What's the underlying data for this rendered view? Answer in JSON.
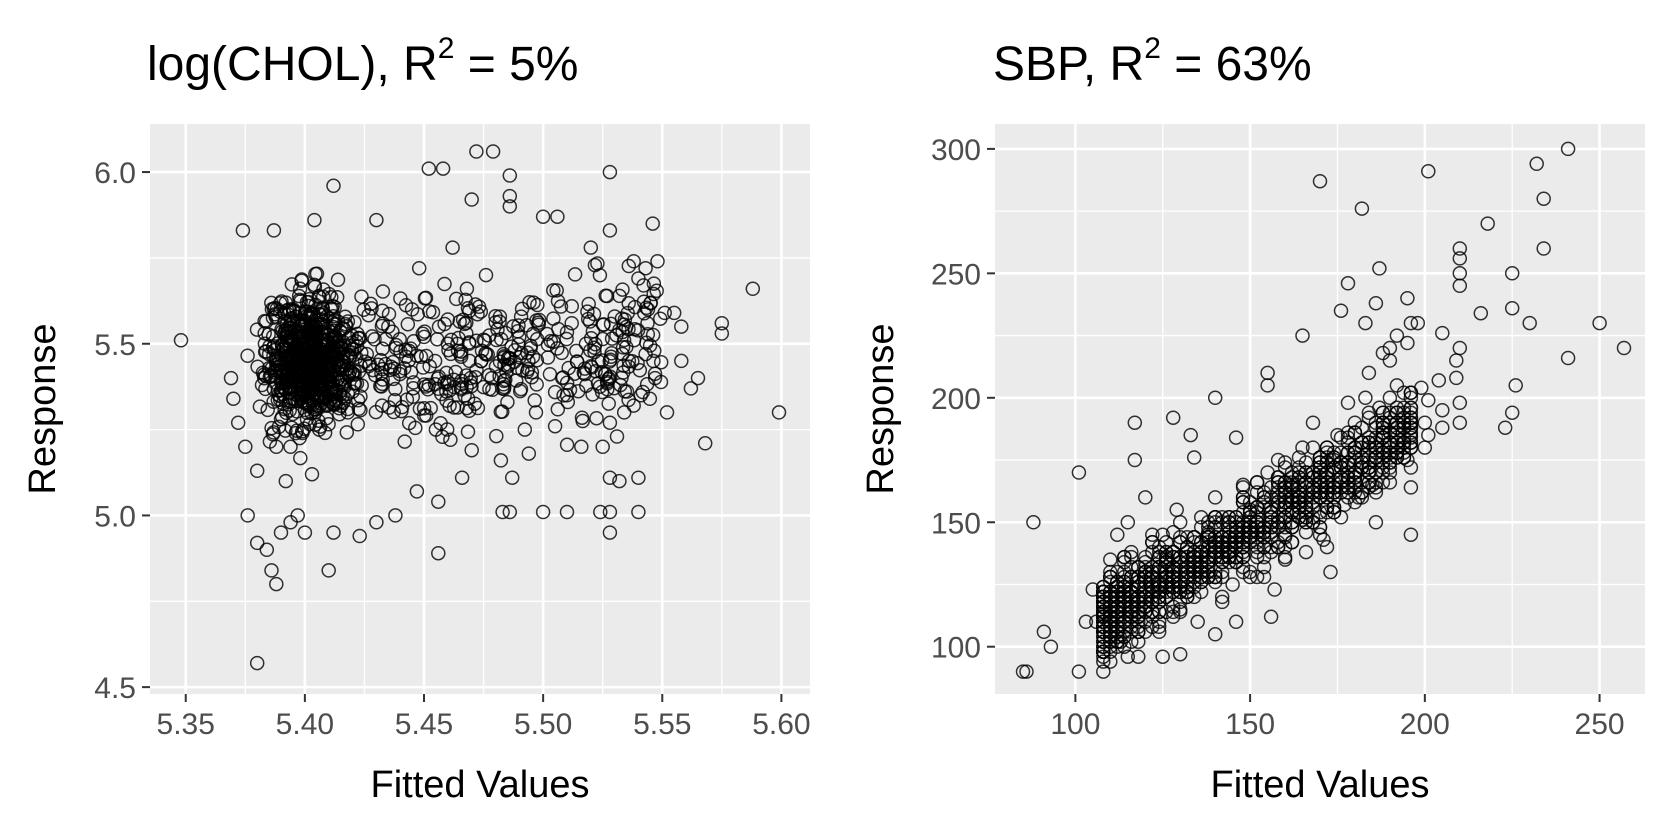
{
  "chart_data": [
    {
      "type": "scatter",
      "title": "log(CHOL), R",
      "title_superscript": "2",
      "title_suffix": " = 5%",
      "xlabel": "Fitted Values",
      "ylabel": "Response",
      "xlim": [
        5.335,
        5.612
      ],
      "ylim": [
        4.48,
        6.14
      ],
      "xticks": [
        {
          "value": 5.35,
          "label": "5.35"
        },
        {
          "value": 5.4,
          "label": "5.40"
        },
        {
          "value": 5.45,
          "label": "5.45"
        },
        {
          "value": 5.5,
          "label": "5.50"
        },
        {
          "value": 5.55,
          "label": "5.55"
        },
        {
          "value": 5.6,
          "label": "5.60"
        }
      ],
      "yticks": [
        {
          "value": 4.5,
          "label": "4.5"
        },
        {
          "value": 5.0,
          "label": "5.0"
        },
        {
          "value": 5.5,
          "label": "5.5"
        },
        {
          "value": 6.0,
          "label": "6.0"
        }
      ],
      "grid": true,
      "marker": "open-circle",
      "points": [
        [
          5.348,
          5.51
        ],
        [
          5.599,
          5.3
        ],
        [
          5.588,
          5.66
        ],
        [
          5.575,
          5.56
        ],
        [
          5.575,
          5.53
        ],
        [
          5.568,
          5.21
        ],
        [
          5.565,
          5.4
        ],
        [
          5.562,
          5.37
        ],
        [
          5.558,
          5.45
        ],
        [
          5.552,
          5.3
        ],
        [
          5.38,
          4.57
        ],
        [
          5.388,
          4.8
        ],
        [
          5.386,
          4.84
        ],
        [
          5.384,
          4.9
        ],
        [
          5.38,
          4.92
        ],
        [
          5.376,
          5.0
        ],
        [
          5.39,
          4.95
        ],
        [
          5.41,
          4.84
        ],
        [
          5.456,
          4.89
        ],
        [
          5.394,
          4.98
        ],
        [
          5.472,
          6.06
        ],
        [
          5.479,
          6.06
        ],
        [
          5.452,
          6.01
        ],
        [
          5.458,
          6.01
        ],
        [
          5.528,
          6.0
        ],
        [
          5.486,
          5.99
        ],
        [
          5.412,
          5.96
        ],
        [
          5.486,
          5.93
        ],
        [
          5.47,
          5.92
        ],
        [
          5.486,
          5.9
        ],
        [
          5.43,
          5.86
        ],
        [
          5.404,
          5.86
        ],
        [
          5.5,
          5.87
        ],
        [
          5.506,
          5.87
        ],
        [
          5.546,
          5.85
        ],
        [
          5.528,
          5.83
        ],
        [
          5.374,
          5.83
        ],
        [
          5.387,
          5.83
        ],
        [
          5.52,
          5.78
        ],
        [
          5.538,
          5.74
        ],
        [
          5.548,
          5.74
        ],
        [
          5.543,
          5.72
        ],
        [
          5.54,
          5.69
        ],
        [
          5.544,
          5.6
        ],
        [
          5.551,
          5.59
        ],
        [
          5.555,
          5.59
        ],
        [
          5.558,
          5.55
        ],
        [
          5.532,
          5.54
        ],
        [
          5.543,
          5.47
        ],
        [
          5.536,
          5.45
        ],
        [
          5.547,
          5.4
        ],
        [
          5.541,
          5.35
        ],
        [
          5.538,
          5.32
        ],
        [
          5.534,
          5.3
        ],
        [
          5.528,
          5.27
        ],
        [
          5.531,
          5.23
        ],
        [
          5.525,
          5.2
        ],
        [
          5.528,
          5.11
        ],
        [
          5.532,
          5.1
        ],
        [
          5.54,
          5.11
        ],
        [
          5.528,
          5.01
        ],
        [
          5.524,
          5.01
        ],
        [
          5.54,
          5.01
        ],
        [
          5.528,
          4.95
        ],
        [
          5.51,
          5.01
        ],
        [
          5.5,
          5.01
        ],
        [
          5.483,
          5.01
        ],
        [
          5.486,
          5.01
        ],
        [
          5.487,
          5.11
        ],
        [
          5.466,
          5.11
        ],
        [
          5.494,
          5.18
        ],
        [
          5.505,
          5.26
        ],
        [
          5.516,
          5.2
        ],
        [
          5.51,
          5.35
        ],
        [
          5.497,
          5.3
        ],
        [
          5.47,
          5.19
        ],
        [
          5.456,
          5.04
        ],
        [
          5.447,
          5.07
        ],
        [
          5.438,
          5.0
        ],
        [
          5.43,
          4.98
        ],
        [
          5.423,
          4.94
        ],
        [
          5.412,
          4.95
        ],
        [
          5.4,
          4.95
        ],
        [
          5.397,
          5.0
        ],
        [
          5.392,
          5.1
        ],
        [
          5.38,
          5.13
        ],
        [
          5.375,
          5.2
        ],
        [
          5.372,
          5.27
        ],
        [
          5.37,
          5.34
        ],
        [
          5.369,
          5.4
        ]
      ],
      "cluster_points": [
        [
          5.4,
          5.45
        ],
        [
          5.395,
          5.4
        ],
        [
          5.405,
          5.38
        ],
        [
          5.41,
          5.5
        ],
        [
          5.398,
          5.55
        ],
        [
          5.402,
          5.32
        ],
        [
          5.39,
          5.28
        ],
        [
          5.385,
          5.47
        ],
        [
          5.415,
          5.43
        ],
        [
          5.42,
          5.36
        ],
        [
          5.392,
          5.62
        ],
        [
          5.388,
          5.2
        ],
        [
          5.406,
          5.25
        ],
        [
          5.412,
          5.58
        ],
        [
          5.398,
          5.66
        ],
        [
          5.403,
          5.12
        ],
        [
          5.418,
          5.3
        ],
        [
          5.394,
          5.52
        ],
        [
          5.382,
          5.38
        ],
        [
          5.426,
          5.47
        ],
        [
          5.435,
          5.55
        ],
        [
          5.44,
          5.42
        ],
        [
          5.445,
          5.6
        ],
        [
          5.452,
          5.38
        ],
        [
          5.46,
          5.5
        ],
        [
          5.468,
          5.66
        ],
        [
          5.474,
          5.45
        ],
        [
          5.48,
          5.58
        ],
        [
          5.485,
          5.33
        ],
        [
          5.49,
          5.52
        ],
        [
          5.496,
          5.62
        ],
        [
          5.502,
          5.46
        ],
        [
          5.508,
          5.4
        ],
        [
          5.512,
          5.56
        ],
        [
          5.518,
          5.5
        ],
        [
          5.522,
          5.42
        ],
        [
          5.455,
          5.25
        ],
        [
          5.448,
          5.72
        ],
        [
          5.462,
          5.78
        ],
        [
          5.476,
          5.7
        ]
      ]
    },
    {
      "type": "scatter",
      "title": "SBP, R",
      "title_superscript": "2",
      "title_suffix": " = 63%",
      "xlabel": "Fitted Values",
      "ylabel": "Response",
      "xlim": [
        77,
        263
      ],
      "ylim": [
        81,
        310
      ],
      "xticks": [
        {
          "value": 100,
          "label": "100"
        },
        {
          "value": 150,
          "label": "150"
        },
        {
          "value": 200,
          "label": "200"
        },
        {
          "value": 250,
          "label": "250"
        }
      ],
      "yticks": [
        {
          "value": 100,
          "label": "100"
        },
        {
          "value": 150,
          "label": "150"
        },
        {
          "value": 200,
          "label": "200"
        },
        {
          "value": 250,
          "label": "250"
        },
        {
          "value": 300,
          "label": "300"
        }
      ],
      "grid": true,
      "marker": "open-circle",
      "points": [
        [
          85,
          90
        ],
        [
          86,
          90
        ],
        [
          101,
          90
        ],
        [
          88,
          150
        ],
        [
          91,
          106
        ],
        [
          93,
          100
        ],
        [
          101,
          170
        ],
        [
          113,
          102
        ],
        [
          117,
          190
        ],
        [
          117,
          175
        ],
        [
          128,
          192
        ],
        [
          133,
          185
        ],
        [
          134,
          176
        ],
        [
          140,
          200
        ],
        [
          146,
          184
        ],
        [
          155,
          205
        ],
        [
          155,
          210
        ],
        [
          165,
          225
        ],
        [
          170,
          287
        ],
        [
          182,
          276
        ],
        [
          178,
          246
        ],
        [
          187,
          252
        ],
        [
          176,
          235
        ],
        [
          183,
          230
        ],
        [
          186,
          238
        ],
        [
          190,
          220
        ],
        [
          195,
          240
        ],
        [
          195,
          222
        ],
        [
          201,
          291
        ],
        [
          198,
          230
        ],
        [
          205,
          226
        ],
        [
          209,
          215
        ],
        [
          201,
          185
        ],
        [
          205,
          188
        ],
        [
          210,
          198
        ],
        [
          210,
          250
        ],
        [
          210,
          245
        ],
        [
          210,
          256
        ],
        [
          210,
          260
        ],
        [
          218,
          270
        ],
        [
          216,
          234
        ],
        [
          225,
          236
        ],
        [
          225,
          250
        ],
        [
          226,
          205
        ],
        [
          225,
          194
        ],
        [
          223,
          188
        ],
        [
          230,
          230
        ],
        [
          234,
          280
        ],
        [
          234,
          260
        ],
        [
          232,
          294
        ],
        [
          241,
          300
        ],
        [
          241,
          216
        ],
        [
          250,
          230
        ],
        [
          257,
          220
        ],
        [
          196,
          145
        ],
        [
          186,
          150
        ],
        [
          181,
          160
        ],
        [
          177,
          157
        ],
        [
          173,
          130
        ],
        [
          171,
          143
        ],
        [
          165,
          151
        ],
        [
          156,
          112
        ],
        [
          157,
          123
        ],
        [
          146,
          110
        ],
        [
          140,
          105
        ],
        [
          130,
          97
        ],
        [
          125,
          96
        ],
        [
          115,
          96
        ],
        [
          110,
          100
        ],
        [
          106,
          110
        ],
        [
          103,
          110
        ],
        [
          108,
          113
        ],
        [
          110,
          120
        ],
        [
          105,
          123
        ],
        [
          110,
          135
        ],
        [
          112,
          145
        ],
        [
          115,
          150
        ],
        [
          122,
          145
        ],
        [
          120,
          160
        ],
        [
          129,
          155
        ],
        [
          190,
          215
        ],
        [
          192,
          205
        ],
        [
          187,
          196
        ],
        [
          200,
          190
        ],
        [
          201,
          199
        ],
        [
          204,
          207
        ],
        [
          199,
          204
        ],
        [
          196,
          196
        ],
        [
          209,
          208
        ],
        [
          210,
          220
        ],
        [
          210,
          190
        ],
        [
          205,
          195
        ],
        [
          200,
          180
        ],
        [
          196,
          185
        ],
        [
          195,
          175
        ],
        [
          190,
          170
        ],
        [
          186,
          180
        ],
        [
          182,
          174
        ],
        [
          180,
          178
        ],
        [
          183,
          200
        ]
      ],
      "band_points": [
        [
          118,
          120
        ],
        [
          120,
          130
        ],
        [
          122,
          118
        ],
        [
          124,
          125
        ],
        [
          126,
          135
        ],
        [
          128,
          128
        ],
        [
          130,
          115
        ],
        [
          132,
          140
        ],
        [
          134,
          132
        ],
        [
          136,
          122
        ],
        [
          138,
          145
        ],
        [
          140,
          138
        ],
        [
          142,
          128
        ],
        [
          144,
          150
        ],
        [
          146,
          142
        ],
        [
          148,
          136
        ],
        [
          150,
          155
        ],
        [
          152,
          148
        ],
        [
          154,
          140
        ],
        [
          156,
          160
        ],
        [
          158,
          152
        ],
        [
          160,
          145
        ],
        [
          162,
          165
        ],
        [
          164,
          158
        ],
        [
          166,
          150
        ],
        [
          168,
          170
        ],
        [
          170,
          162
        ],
        [
          172,
          156
        ],
        [
          174,
          175
        ],
        [
          176,
          168
        ],
        [
          120,
          110
        ],
        [
          125,
          145
        ],
        [
          130,
          150
        ],
        [
          135,
          110
        ],
        [
          140,
          160
        ],
        [
          145,
          125
        ],
        [
          150,
          130
        ],
        [
          155,
          170
        ],
        [
          160,
          135
        ],
        [
          165,
          180
        ],
        [
          170,
          145
        ],
        [
          175,
          185
        ],
        [
          180,
          190
        ],
        [
          185,
          165
        ],
        [
          190,
          200
        ],
        [
          128,
          112
        ],
        [
          132,
          122
        ],
        [
          136,
          148
        ],
        [
          142,
          118
        ],
        [
          148,
          165
        ],
        [
          152,
          128
        ],
        [
          158,
          175
        ],
        [
          162,
          142
        ],
        [
          168,
          190
        ],
        [
          172,
          140
        ],
        [
          178,
          198
        ],
        [
          184,
          210
        ],
        [
          188,
          218
        ],
        [
          192,
          225
        ],
        [
          196,
          230
        ]
      ]
    }
  ]
}
